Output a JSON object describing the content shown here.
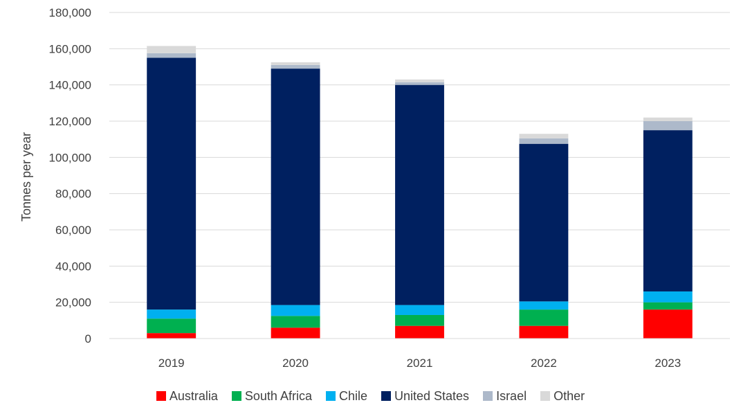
{
  "chart_data": {
    "type": "bar",
    "stacked": true,
    "title": "",
    "xlabel": "",
    "ylabel": "Tonnes per year",
    "categories": [
      "2019",
      "2020",
      "2021",
      "2022",
      "2023"
    ],
    "ylim": [
      0,
      180000
    ],
    "yticks": [
      0,
      20000,
      40000,
      60000,
      80000,
      100000,
      120000,
      140000,
      160000,
      180000
    ],
    "ytick_labels": [
      "0",
      "20,000",
      "40,000",
      "60,000",
      "80,000",
      "100,000",
      "120,000",
      "140,000",
      "160,000",
      "180,000"
    ],
    "grid": "horizontal",
    "legend_position": "bottom",
    "series": [
      {
        "name": "Australia",
        "color": "#ff0000",
        "values": [
          3000,
          6000,
          7000,
          7000,
          16000
        ]
      },
      {
        "name": "South Africa",
        "color": "#00b050",
        "values": [
          8000,
          6500,
          6000,
          9000,
          4000
        ]
      },
      {
        "name": "Chile",
        "color": "#00b0f0",
        "values": [
          5000,
          6000,
          5500,
          4500,
          6000
        ]
      },
      {
        "name": "United States",
        "color": "#002060",
        "values": [
          139000,
          130500,
          121500,
          87000,
          89000
        ]
      },
      {
        "name": "Israel",
        "color": "#adb9ca",
        "values": [
          2500,
          2000,
          1500,
          3000,
          5000
        ]
      },
      {
        "name": "Other",
        "color": "#d9d9d9",
        "values": [
          4000,
          1500,
          1500,
          2500,
          2000
        ]
      }
    ]
  }
}
